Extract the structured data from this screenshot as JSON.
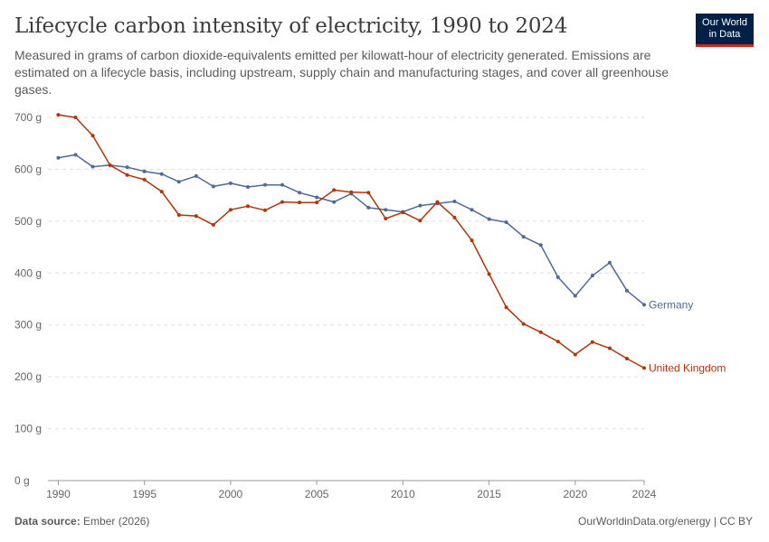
{
  "header": {
    "title": "Lifecycle carbon intensity of electricity, 1990 to 2024",
    "subtitle": "Measured in grams of carbon dioxide-equivalents emitted per kilowatt-hour of electricity generated. Emissions are estimated on a lifecycle basis, including upstream, supply chain and manufacturing stages, and cover all greenhouse gases."
  },
  "logo": {
    "line1": "Our World",
    "line2": "in Data"
  },
  "footer": {
    "source_label": "Data source:",
    "source_value": "Ember (2026)",
    "credit": "OurWorldinData.org/energy | CC BY"
  },
  "chart_data": {
    "type": "line",
    "title": "Lifecycle carbon intensity of electricity, 1990 to 2024",
    "x": [
      1990,
      1991,
      1992,
      1993,
      1994,
      1995,
      1996,
      1997,
      1998,
      1999,
      2000,
      2001,
      2002,
      2003,
      2004,
      2005,
      2006,
      2007,
      2008,
      2009,
      2010,
      2011,
      2012,
      2013,
      2014,
      2015,
      2016,
      2017,
      2018,
      2019,
      2020,
      2021,
      2022,
      2023,
      2024
    ],
    "xlim": [
      1989.4,
      2024
    ],
    "ylim": [
      0,
      700
    ],
    "y_ticks": [
      0,
      100,
      200,
      300,
      400,
      500,
      600,
      700
    ],
    "y_tick_labels": [
      "0 g",
      "100 g",
      "200 g",
      "300 g",
      "400 g",
      "500 g",
      "600 g",
      "700 g"
    ],
    "x_ticks": [
      1990,
      1995,
      2000,
      2005,
      2010,
      2015,
      2020,
      2024
    ],
    "x_tick_labels": [
      "1990",
      "1995",
      "2000",
      "2005",
      "2010",
      "2015",
      "2020",
      "2024"
    ],
    "grid": true,
    "series": [
      {
        "name": "Germany",
        "color": "#4c6a9c",
        "values": [
          622,
          628,
          605,
          608,
          604,
          596,
          591,
          576,
          587,
          567,
          573,
          566,
          570,
          570,
          555,
          546,
          537,
          553,
          526,
          522,
          518,
          530,
          534,
          538,
          522,
          504,
          498,
          470,
          454,
          392,
          356,
          395,
          420,
          366,
          339
        ]
      },
      {
        "name": "United Kingdom",
        "color": "#b13507",
        "values": [
          705,
          700,
          665,
          608,
          589,
          580,
          557,
          512,
          510,
          493,
          522,
          529,
          521,
          537,
          536,
          536,
          560,
          556,
          555,
          505,
          517,
          501,
          537,
          507,
          463,
          398,
          334,
          302,
          286,
          268,
          243,
          267,
          255,
          235,
          217
        ]
      }
    ]
  }
}
